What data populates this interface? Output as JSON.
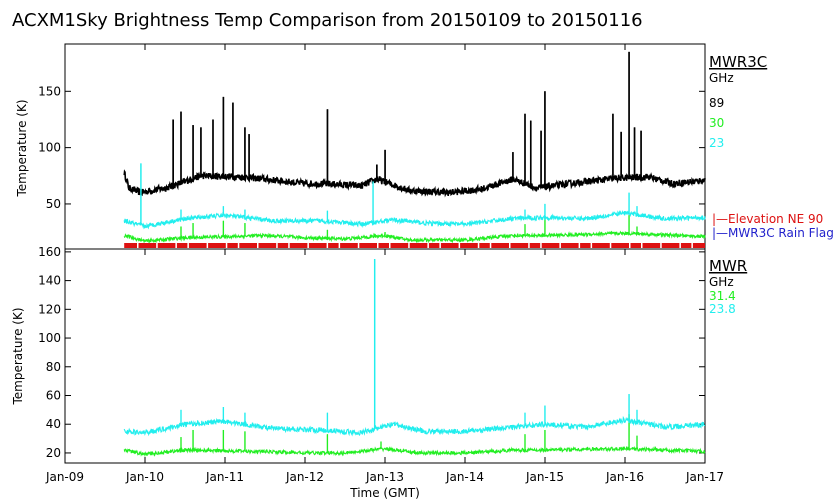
{
  "chart_data": [
    {
      "type": "line",
      "panel": "top",
      "title": "ACXM1Sky Brightness Temp Comparison from 20150109 to 20150116",
      "instrument": "MWR3C",
      "unit_label": "GHz",
      "ylabel": "Temperature (K)",
      "ylim": [
        10,
        192
      ],
      "yticks": [
        50,
        100,
        150
      ],
      "xlim": [
        0,
        8
      ],
      "series": [
        {
          "name": "89",
          "color": "#000000",
          "thick": true,
          "base": 68,
          "noise": 3,
          "points": [
            [
              0.74,
              78
            ],
            [
              0.8,
              64
            ],
            [
              0.95,
              60
            ],
            [
              1.3,
              65
            ],
            [
              1.5,
              70
            ],
            [
              1.7,
              75
            ],
            [
              2.2,
              74
            ],
            [
              2.5,
              72
            ],
            [
              3.0,
              68
            ],
            [
              3.2,
              68
            ],
            [
              3.5,
              67
            ],
            [
              3.7,
              66
            ],
            [
              3.9,
              72
            ],
            [
              4.3,
              62
            ],
            [
              4.8,
              60
            ],
            [
              5.2,
              63
            ],
            [
              5.6,
              72
            ],
            [
              5.9,
              64
            ],
            [
              6.3,
              68
            ],
            [
              6.9,
              73
            ],
            [
              7.3,
              74
            ],
            [
              7.6,
              68
            ],
            [
              8.0,
              71
            ]
          ],
          "spikes": [
            [
              1.35,
              125
            ],
            [
              1.45,
              132
            ],
            [
              1.6,
              120
            ],
            [
              1.7,
              118
            ],
            [
              1.85,
              125
            ],
            [
              1.98,
              145
            ],
            [
              2.1,
              140
            ],
            [
              2.25,
              118
            ],
            [
              2.3,
              112
            ],
            [
              3.28,
              134
            ],
            [
              3.9,
              85
            ],
            [
              4.0,
              98
            ],
            [
              5.6,
              96
            ],
            [
              5.75,
              130
            ],
            [
              5.82,
              124
            ],
            [
              5.95,
              115
            ],
            [
              6.0,
              150
            ],
            [
              6.85,
              130
            ],
            [
              6.95,
              114
            ],
            [
              7.05,
              185
            ],
            [
              7.12,
              118
            ],
            [
              7.2,
              115
            ]
          ]
        },
        {
          "name": "30",
          "color": "#22ee22",
          "thick": false,
          "base": 20,
          "noise": 1.5,
          "points": [
            [
              0.74,
              22
            ],
            [
              1.0,
              17
            ],
            [
              1.5,
              20
            ],
            [
              2.5,
              22
            ],
            [
              3.0,
              20
            ],
            [
              3.5,
              19
            ],
            [
              4.0,
              22
            ],
            [
              4.3,
              18
            ],
            [
              5.0,
              18
            ],
            [
              5.6,
              22
            ],
            [
              6.0,
              22
            ],
            [
              7.0,
              24
            ],
            [
              8.0,
              21
            ]
          ],
          "spikes": [
            [
              1.45,
              30
            ],
            [
              1.6,
              33
            ],
            [
              1.98,
              35
            ],
            [
              2.25,
              33
            ],
            [
              3.28,
              27
            ],
            [
              4.0,
              25
            ],
            [
              5.75,
              32
            ],
            [
              6.0,
              37
            ],
            [
              7.05,
              40
            ],
            [
              7.15,
              30
            ]
          ]
        },
        {
          "name": "23",
          "color": "#22eeee",
          "thick": false,
          "base": 35,
          "noise": 2,
          "points": [
            [
              0.74,
              35
            ],
            [
              1.0,
              30
            ],
            [
              1.5,
              37
            ],
            [
              2.0,
              40
            ],
            [
              2.6,
              35
            ],
            [
              3.2,
              35
            ],
            [
              3.7,
              32
            ],
            [
              4.1,
              36
            ],
            [
              4.5,
              33
            ],
            [
              5.0,
              32
            ],
            [
              5.6,
              37
            ],
            [
              6.0,
              38
            ],
            [
              6.5,
              37
            ],
            [
              7.0,
              42
            ],
            [
              7.5,
              37
            ],
            [
              8.0,
              38
            ]
          ],
          "spikes": [
            [
              0.95,
              86
            ],
            [
              1.45,
              45
            ],
            [
              1.98,
              48
            ],
            [
              2.25,
              45
            ],
            [
              3.28,
              44
            ],
            [
              3.85,
              70
            ],
            [
              5.75,
              45
            ],
            [
              6.0,
              50
            ],
            [
              7.05,
              60
            ],
            [
              7.15,
              48
            ]
          ]
        }
      ],
      "flags": [
        {
          "name": "Elevation NE 90",
          "color": "#dd1111",
          "label": "|—Elevation NE 90"
        },
        {
          "name": "MWR3C Rain Flag",
          "color": "#2222cc",
          "label": "|—MWR3C Rain Flag"
        }
      ]
    },
    {
      "type": "line",
      "panel": "bottom",
      "instrument": "MWR",
      "unit_label": "GHz",
      "ylabel": "Temperature (K)",
      "xlabel": "Time (GMT)",
      "ylim": [
        13,
        162
      ],
      "yticks": [
        20,
        40,
        60,
        80,
        100,
        120,
        140,
        160
      ],
      "xlim": [
        0,
        8
      ],
      "xticks": [
        "Jan-09",
        "Jan-10",
        "Jan-11",
        "Jan-12",
        "Jan-13",
        "Jan-14",
        "Jan-15",
        "Jan-16",
        "Jan-17"
      ],
      "series": [
        {
          "name": "31.4",
          "color": "#22ee22",
          "thick": false,
          "base": 20,
          "noise": 1.2,
          "points": [
            [
              0.74,
              22
            ],
            [
              1.0,
              19
            ],
            [
              1.5,
              22
            ],
            [
              2.5,
              21
            ],
            [
              3.0,
              20
            ],
            [
              3.5,
              20
            ],
            [
              4.0,
              23
            ],
            [
              4.4,
              20
            ],
            [
              5.0,
              20
            ],
            [
              5.6,
              22
            ],
            [
              6.0,
              22
            ],
            [
              7.0,
              23
            ],
            [
              8.0,
              21
            ]
          ],
          "spikes": [
            [
              1.45,
              31
            ],
            [
              1.6,
              36
            ],
            [
              1.98,
              36
            ],
            [
              2.25,
              35
            ],
            [
              3.28,
              33
            ],
            [
              3.95,
              28
            ],
            [
              5.75,
              33
            ],
            [
              6.0,
              36
            ],
            [
              7.05,
              47
            ],
            [
              7.15,
              32
            ]
          ]
        },
        {
          "name": "23.8",
          "color": "#22eeee",
          "thick": false,
          "base": 36,
          "noise": 1.8,
          "points": [
            [
              0.74,
              35
            ],
            [
              1.0,
              34
            ],
            [
              1.5,
              40
            ],
            [
              2.0,
              42
            ],
            [
              2.6,
              37
            ],
            [
              3.2,
              36
            ],
            [
              3.7,
              34
            ],
            [
              4.1,
              40
            ],
            [
              4.5,
              35
            ],
            [
              5.0,
              35
            ],
            [
              5.6,
              38
            ],
            [
              6.0,
              40
            ],
            [
              6.5,
              38
            ],
            [
              7.0,
              43
            ],
            [
              7.5,
              38
            ],
            [
              8.0,
              40
            ]
          ],
          "spikes": [
            [
              1.45,
              50
            ],
            [
              1.98,
              52
            ],
            [
              2.25,
              48
            ],
            [
              3.28,
              48
            ],
            [
              3.87,
              155
            ],
            [
              5.75,
              48
            ],
            [
              6.0,
              53
            ],
            [
              7.05,
              61
            ],
            [
              7.15,
              50
            ]
          ]
        }
      ]
    }
  ]
}
